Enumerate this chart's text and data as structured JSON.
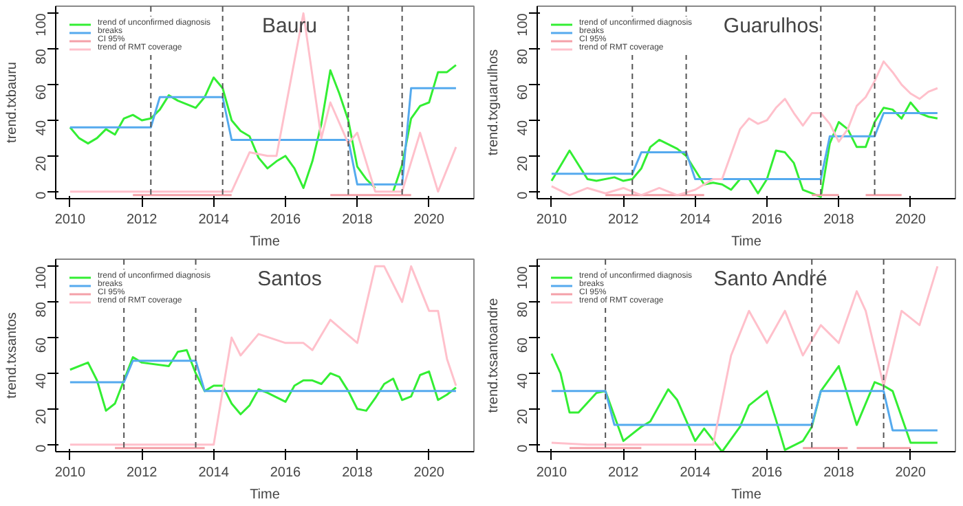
{
  "chart_data": [
    {
      "type": "line",
      "title": "Bauru",
      "xlabel": "Time",
      "ylabel": "trend.txbauru",
      "xlim": [
        2009.6,
        2021.25
      ],
      "ylim": [
        -4,
        104
      ],
      "xticks": [
        2010,
        2012,
        2014,
        2016,
        2018,
        2020
      ],
      "yticks": [
        0,
        20,
        40,
        60,
        80,
        100
      ],
      "grid": false,
      "legend": "top left",
      "line_style": "solid",
      "marker": "none",
      "series": [
        {
          "name": "trend of unconfirmed diagnosis",
          "color": "#33ee33",
          "x": [
            2010,
            2010.25,
            2010.5,
            2010.75,
            2011,
            2011.25,
            2011.5,
            2011.75,
            2012,
            2012.25,
            2012.5,
            2012.75,
            2013,
            2013.25,
            2013.5,
            2013.75,
            2014,
            2014.25,
            2014.5,
            2014.75,
            2015,
            2015.25,
            2015.5,
            2015.75,
            2016,
            2016.25,
            2016.5,
            2016.75,
            2017,
            2017.25,
            2017.5,
            2017.75,
            2018,
            2018.25,
            2018.5,
            2018.75,
            2019,
            2019.25,
            2019.5,
            2019.75,
            2020,
            2020.25,
            2020.5,
            2020.75
          ],
          "values": [
            36,
            30,
            27,
            30,
            35,
            32,
            41,
            43,
            40,
            41,
            46,
            54,
            51,
            49,
            47,
            53,
            64,
            58,
            40,
            34,
            31,
            19,
            13,
            17,
            20,
            13,
            2,
            17,
            38,
            68,
            55,
            40,
            14,
            7,
            2,
            null,
            0,
            15,
            41,
            48,
            50,
            67,
            67,
            71
          ]
        },
        {
          "name": "breaks",
          "color": "#55aaee",
          "x": [
            2010,
            2012.25,
            2012.5,
            2014.25,
            2014.5,
            2017.75,
            2018,
            2019.25,
            2019.5,
            2020.75
          ],
          "values": [
            36,
            36,
            53,
            53,
            29,
            29,
            4,
            4,
            58,
            58
          ]
        },
        {
          "name": "CI 95%",
          "color": "#f4a0a8",
          "x": [
            2011.75,
            2014.5,
            2015,
            2017.25,
            2019.5
          ],
          "values": [
            -2,
            -2,
            null,
            -2,
            -2
          ]
        },
        {
          "name": "trend of RMT coverage",
          "color": "#ffc0cb",
          "x": [
            2010,
            2014.5,
            2015,
            2015.5,
            2015.75,
            2016.5,
            2017,
            2017.25,
            2017.75,
            2018,
            2018.5,
            2019.25,
            2019.75,
            2020.25,
            2020.75
          ],
          "values": [
            0,
            0,
            22,
            20,
            20,
            100,
            30,
            50,
            27,
            33,
            0,
            0,
            33,
            0,
            25
          ]
        }
      ],
      "ref_lines": [
        {
          "axis": "x",
          "value": 2012.25,
          "color": "#555555",
          "line_style": "dashed"
        },
        {
          "axis": "x",
          "value": 2014.25,
          "color": "#555555",
          "line_style": "dashed"
        },
        {
          "axis": "x",
          "value": 2017.75,
          "color": "#555555",
          "line_style": "dashed"
        },
        {
          "axis": "x",
          "value": 2019.25,
          "color": "#555555",
          "line_style": "dashed"
        }
      ]
    },
    {
      "type": "line",
      "title": "Guarulhos",
      "xlabel": "Time",
      "ylabel": "trend.txguarulhos",
      "xlim": [
        2009.6,
        2021.25
      ],
      "ylim": [
        -4,
        104
      ],
      "xticks": [
        2010,
        2012,
        2014,
        2016,
        2018,
        2020
      ],
      "yticks": [
        0,
        20,
        40,
        60,
        80,
        100
      ],
      "grid": false,
      "legend": "top left",
      "line_style": "solid",
      "marker": "none",
      "series": [
        {
          "name": "trend of unconfirmed diagnosis",
          "color": "#33ee33",
          "x": [
            2010,
            2010.5,
            2011,
            2011.25,
            2011.75,
            2012,
            2012.25,
            2012.5,
            2012.75,
            2013,
            2013.5,
            2013.75,
            2014,
            2014.25,
            2014.5,
            2014.75,
            2015,
            2015.25,
            2015.5,
            2015.75,
            2016,
            2016.25,
            2016.5,
            2016.75,
            2017,
            2017.25,
            2017.5,
            2017.75,
            2018,
            2018.25,
            2018.5,
            2018.75,
            2019,
            2019.25,
            2019.5,
            2019.75,
            2020,
            2020.25,
            2020.5,
            2020.75
          ],
          "values": [
            6,
            23,
            7,
            6,
            8,
            6,
            7,
            13,
            25,
            29,
            24,
            20,
            12,
            4,
            5,
            4,
            1,
            7,
            7,
            -1,
            7,
            23,
            22,
            16,
            1,
            -1,
            -3,
            27,
            39,
            35,
            25,
            25,
            39,
            47,
            46,
            41,
            50,
            44,
            42,
            41
          ]
        },
        {
          "name": "breaks",
          "color": "#55aaee",
          "x": [
            2010,
            2012.25,
            2012.5,
            2013.75,
            2014,
            2017.5,
            2017.75,
            2019,
            2019.25,
            2020.75
          ],
          "values": [
            10,
            10,
            22,
            22,
            7,
            7,
            31,
            31,
            44,
            44
          ]
        },
        {
          "name": "CI 95%",
          "color": "#f4a0a8",
          "x": [
            2011.5,
            2014.25,
            2015,
            2017.25,
            2018,
            2018.5,
            2018.75,
            2019.75
          ],
          "values": [
            -2,
            -2,
            null,
            -2,
            -2,
            null,
            -2,
            -2
          ]
        },
        {
          "name": "trend of RMT coverage",
          "color": "#ffc0cb",
          "x": [
            2010,
            2010.5,
            2011,
            2011.5,
            2012,
            2012.5,
            2013,
            2013.5,
            2014,
            2014.5,
            2014.75,
            2015.25,
            2015.5,
            2015.75,
            2016,
            2016.25,
            2016.5,
            2016.75,
            2017,
            2017.25,
            2017.5,
            2017.75,
            2018,
            2018.25,
            2018.5,
            2018.75,
            2019,
            2019.25,
            2019.5,
            2019.75,
            2020,
            2020.25,
            2020.5,
            2020.75
          ],
          "values": [
            3,
            -2,
            2,
            -1,
            2,
            -2,
            2,
            -2,
            1,
            7,
            7,
            35,
            41,
            38,
            40,
            47,
            52,
            44,
            37,
            44,
            44,
            38,
            28,
            35,
            48,
            53,
            62,
            73,
            67,
            60,
            55,
            52,
            56,
            58
          ]
        }
      ],
      "ref_lines": [
        {
          "axis": "x",
          "value": 2012.25,
          "color": "#555555",
          "line_style": "dashed"
        },
        {
          "axis": "x",
          "value": 2013.75,
          "color": "#555555",
          "line_style": "dashed"
        },
        {
          "axis": "x",
          "value": 2017.5,
          "color": "#555555",
          "line_style": "dashed"
        },
        {
          "axis": "x",
          "value": 2019,
          "color": "#555555",
          "line_style": "dashed"
        }
      ]
    },
    {
      "type": "line",
      "title": "Santos",
      "xlabel": "Time",
      "ylabel": "trend.txsantos",
      "xlim": [
        2009.6,
        2021.25
      ],
      "ylim": [
        -4,
        104
      ],
      "xticks": [
        2010,
        2012,
        2014,
        2016,
        2018,
        2020
      ],
      "yticks": [
        0,
        20,
        40,
        60,
        80,
        100
      ],
      "grid": false,
      "legend": "top left",
      "line_style": "solid",
      "marker": "none",
      "series": [
        {
          "name": "trend of unconfirmed diagnosis",
          "color": "#33ee33",
          "x": [
            2010,
            2010.5,
            2010.75,
            2011,
            2011.25,
            2011.5,
            2011.75,
            2012,
            2012.75,
            2013,
            2013.25,
            2013.5,
            2013.75,
            2014,
            2014.25,
            2014.5,
            2014.75,
            2015,
            2015.25,
            2015.5,
            2016,
            2016.25,
            2016.5,
            2016.75,
            2017,
            2017.25,
            2017.5,
            2017.75,
            2018,
            2018.25,
            2018.5,
            2018.75,
            2019,
            2019.25,
            2019.5,
            2019.75,
            2020,
            2020.25,
            2020.5,
            2020.75
          ],
          "values": [
            42,
            46,
            36,
            19,
            23,
            36,
            49,
            46,
            44,
            52,
            53,
            40,
            30,
            33,
            33,
            23,
            17,
            22,
            31,
            29,
            24,
            33,
            36,
            36,
            34,
            40,
            38,
            30,
            20,
            19,
            26,
            34,
            37,
            25,
            27,
            39,
            41,
            25,
            28,
            32
          ]
        },
        {
          "name": "breaks",
          "color": "#55aaee",
          "x": [
            2010,
            2011.5,
            2011.75,
            2013.5,
            2013.75,
            2020.75
          ],
          "values": [
            35,
            35,
            47,
            47,
            30,
            30
          ]
        },
        {
          "name": "CI 95%",
          "color": "#f4a0a8",
          "x": [
            2011.25,
            2013.75
          ],
          "values": [
            -2,
            -2
          ]
        },
        {
          "name": "trend of RMT coverage",
          "color": "#ffc0cb",
          "x": [
            2010,
            2014,
            2014.5,
            2014.75,
            2015.25,
            2016,
            2016.5,
            2016.75,
            2017.25,
            2018,
            2018.5,
            2018.75,
            2019.25,
            2019.5,
            2020,
            2020.25,
            2020.5,
            2020.75
          ],
          "values": [
            0,
            0,
            60,
            50,
            62,
            57,
            57,
            53,
            70,
            57,
            100,
            100,
            80,
            100,
            75,
            75,
            48,
            33
          ]
        }
      ],
      "ref_lines": [
        {
          "axis": "x",
          "value": 2011.5,
          "color": "#555555",
          "line_style": "dashed"
        },
        {
          "axis": "x",
          "value": 2013.5,
          "color": "#555555",
          "line_style": "dashed"
        }
      ]
    },
    {
      "type": "line",
      "title": "Santo André",
      "xlabel": "Time",
      "ylabel": "trend.txsantoandre",
      "xlim": [
        2009.6,
        2021.25
      ],
      "ylim": [
        -4,
        104
      ],
      "xticks": [
        2010,
        2012,
        2014,
        2016,
        2018,
        2020
      ],
      "yticks": [
        0,
        20,
        40,
        60,
        80,
        100
      ],
      "grid": false,
      "legend": "top left",
      "line_style": "solid",
      "marker": "none",
      "series": [
        {
          "name": "trend of unconfirmed diagnosis",
          "color": "#33ee33",
          "x": [
            2010,
            2010.25,
            2010.5,
            2010.75,
            2011.25,
            2011.5,
            2012,
            2012.5,
            2012.75,
            2013.25,
            2013.5,
            2014,
            2014.25,
            2014.75,
            2015.25,
            2015.5,
            2016,
            2016.25,
            2016.5,
            2017,
            2017.25,
            2017.5,
            2018,
            2018.5,
            2019,
            2019.25,
            2019.5,
            2020,
            2020.75
          ],
          "values": [
            51,
            40,
            18,
            18,
            29,
            30,
            2,
            10,
            13,
            31,
            25,
            2,
            9,
            -4,
            10,
            22,
            30,
            14,
            -3,
            2,
            10,
            30,
            44,
            11,
            35,
            33,
            30,
            1,
            1
          ]
        },
        {
          "name": "breaks",
          "color": "#55aaee",
          "x": [
            2010,
            2011.5,
            2011.75,
            2017.25,
            2017.5,
            2019.25,
            2019.5,
            2020.75
          ],
          "values": [
            30,
            30,
            11,
            11,
            30,
            30,
            8,
            8
          ]
        },
        {
          "name": "CI 95%",
          "color": "#f4a0a8",
          "x": [
            2010.5,
            2012.5,
            2014,
            2017,
            2018.25,
            2018.4,
            2018.5,
            2020
          ],
          "values": [
            -2,
            -2,
            null,
            -2,
            -2,
            null,
            -2,
            -2
          ]
        },
        {
          "name": "trend of RMT coverage",
          "color": "#ffc0cb",
          "x": [
            2010,
            2011,
            2014.5,
            2015,
            2015.5,
            2016,
            2016.5,
            2017,
            2017.5,
            2018,
            2018.5,
            2018.75,
            2019.25,
            2019.75,
            2020.25,
            2020.75
          ],
          "values": [
            1,
            0,
            0,
            50,
            75,
            57,
            75,
            50,
            67,
            57,
            86,
            75,
            33,
            75,
            67,
            100
          ]
        }
      ],
      "ref_lines": [
        {
          "axis": "x",
          "value": 2011.5,
          "color": "#555555",
          "line_style": "dashed"
        },
        {
          "axis": "x",
          "value": 2017.25,
          "color": "#555555",
          "line_style": "dashed"
        },
        {
          "axis": "x",
          "value": 2019.25,
          "color": "#555555",
          "line_style": "dashed"
        }
      ]
    }
  ]
}
